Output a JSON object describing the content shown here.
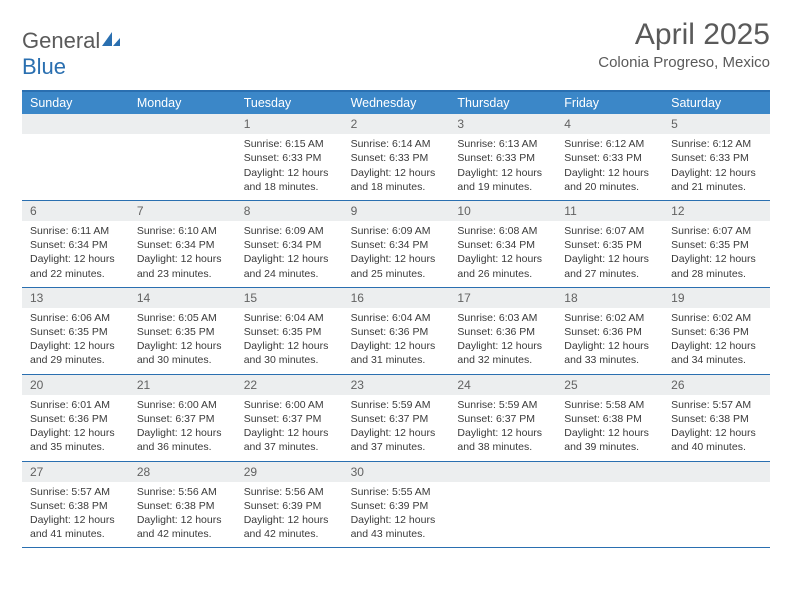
{
  "logo": {
    "text_a": "General",
    "text_b": "Blue"
  },
  "title": "April 2025",
  "location": "Colonia Progreso, Mexico",
  "colors": {
    "header_bg": "#3b87c8",
    "border": "#2a6fb0",
    "daynum_bg": "#eceeef",
    "text": "#3a3a3a",
    "logo_gray": "#5a5a5a",
    "logo_blue": "#2a6fb0"
  },
  "day_names": [
    "Sunday",
    "Monday",
    "Tuesday",
    "Wednesday",
    "Thursday",
    "Friday",
    "Saturday"
  ],
  "weeks": [
    [
      {
        "empty": true
      },
      {
        "empty": true
      },
      {
        "n": "1",
        "sr": "6:15 AM",
        "ss": "6:33 PM",
        "dl": "12 hours and 18 minutes."
      },
      {
        "n": "2",
        "sr": "6:14 AM",
        "ss": "6:33 PM",
        "dl": "12 hours and 18 minutes."
      },
      {
        "n": "3",
        "sr": "6:13 AM",
        "ss": "6:33 PM",
        "dl": "12 hours and 19 minutes."
      },
      {
        "n": "4",
        "sr": "6:12 AM",
        "ss": "6:33 PM",
        "dl": "12 hours and 20 minutes."
      },
      {
        "n": "5",
        "sr": "6:12 AM",
        "ss": "6:33 PM",
        "dl": "12 hours and 21 minutes."
      }
    ],
    [
      {
        "n": "6",
        "sr": "6:11 AM",
        "ss": "6:34 PM",
        "dl": "12 hours and 22 minutes."
      },
      {
        "n": "7",
        "sr": "6:10 AM",
        "ss": "6:34 PM",
        "dl": "12 hours and 23 minutes."
      },
      {
        "n": "8",
        "sr": "6:09 AM",
        "ss": "6:34 PM",
        "dl": "12 hours and 24 minutes."
      },
      {
        "n": "9",
        "sr": "6:09 AM",
        "ss": "6:34 PM",
        "dl": "12 hours and 25 minutes."
      },
      {
        "n": "10",
        "sr": "6:08 AM",
        "ss": "6:34 PM",
        "dl": "12 hours and 26 minutes."
      },
      {
        "n": "11",
        "sr": "6:07 AM",
        "ss": "6:35 PM",
        "dl": "12 hours and 27 minutes."
      },
      {
        "n": "12",
        "sr": "6:07 AM",
        "ss": "6:35 PM",
        "dl": "12 hours and 28 minutes."
      }
    ],
    [
      {
        "n": "13",
        "sr": "6:06 AM",
        "ss": "6:35 PM",
        "dl": "12 hours and 29 minutes."
      },
      {
        "n": "14",
        "sr": "6:05 AM",
        "ss": "6:35 PM",
        "dl": "12 hours and 30 minutes."
      },
      {
        "n": "15",
        "sr": "6:04 AM",
        "ss": "6:35 PM",
        "dl": "12 hours and 30 minutes."
      },
      {
        "n": "16",
        "sr": "6:04 AM",
        "ss": "6:36 PM",
        "dl": "12 hours and 31 minutes."
      },
      {
        "n": "17",
        "sr": "6:03 AM",
        "ss": "6:36 PM",
        "dl": "12 hours and 32 minutes."
      },
      {
        "n": "18",
        "sr": "6:02 AM",
        "ss": "6:36 PM",
        "dl": "12 hours and 33 minutes."
      },
      {
        "n": "19",
        "sr": "6:02 AM",
        "ss": "6:36 PM",
        "dl": "12 hours and 34 minutes."
      }
    ],
    [
      {
        "n": "20",
        "sr": "6:01 AM",
        "ss": "6:36 PM",
        "dl": "12 hours and 35 minutes."
      },
      {
        "n": "21",
        "sr": "6:00 AM",
        "ss": "6:37 PM",
        "dl": "12 hours and 36 minutes."
      },
      {
        "n": "22",
        "sr": "6:00 AM",
        "ss": "6:37 PM",
        "dl": "12 hours and 37 minutes."
      },
      {
        "n": "23",
        "sr": "5:59 AM",
        "ss": "6:37 PM",
        "dl": "12 hours and 37 minutes."
      },
      {
        "n": "24",
        "sr": "5:59 AM",
        "ss": "6:37 PM",
        "dl": "12 hours and 38 minutes."
      },
      {
        "n": "25",
        "sr": "5:58 AM",
        "ss": "6:38 PM",
        "dl": "12 hours and 39 minutes."
      },
      {
        "n": "26",
        "sr": "5:57 AM",
        "ss": "6:38 PM",
        "dl": "12 hours and 40 minutes."
      }
    ],
    [
      {
        "n": "27",
        "sr": "5:57 AM",
        "ss": "6:38 PM",
        "dl": "12 hours and 41 minutes."
      },
      {
        "n": "28",
        "sr": "5:56 AM",
        "ss": "6:38 PM",
        "dl": "12 hours and 42 minutes."
      },
      {
        "n": "29",
        "sr": "5:56 AM",
        "ss": "6:39 PM",
        "dl": "12 hours and 42 minutes."
      },
      {
        "n": "30",
        "sr": "5:55 AM",
        "ss": "6:39 PM",
        "dl": "12 hours and 43 minutes."
      },
      {
        "empty": true
      },
      {
        "empty": true
      },
      {
        "empty": true
      }
    ]
  ],
  "labels": {
    "sunrise": "Sunrise:",
    "sunset": "Sunset:",
    "daylight": "Daylight:"
  }
}
